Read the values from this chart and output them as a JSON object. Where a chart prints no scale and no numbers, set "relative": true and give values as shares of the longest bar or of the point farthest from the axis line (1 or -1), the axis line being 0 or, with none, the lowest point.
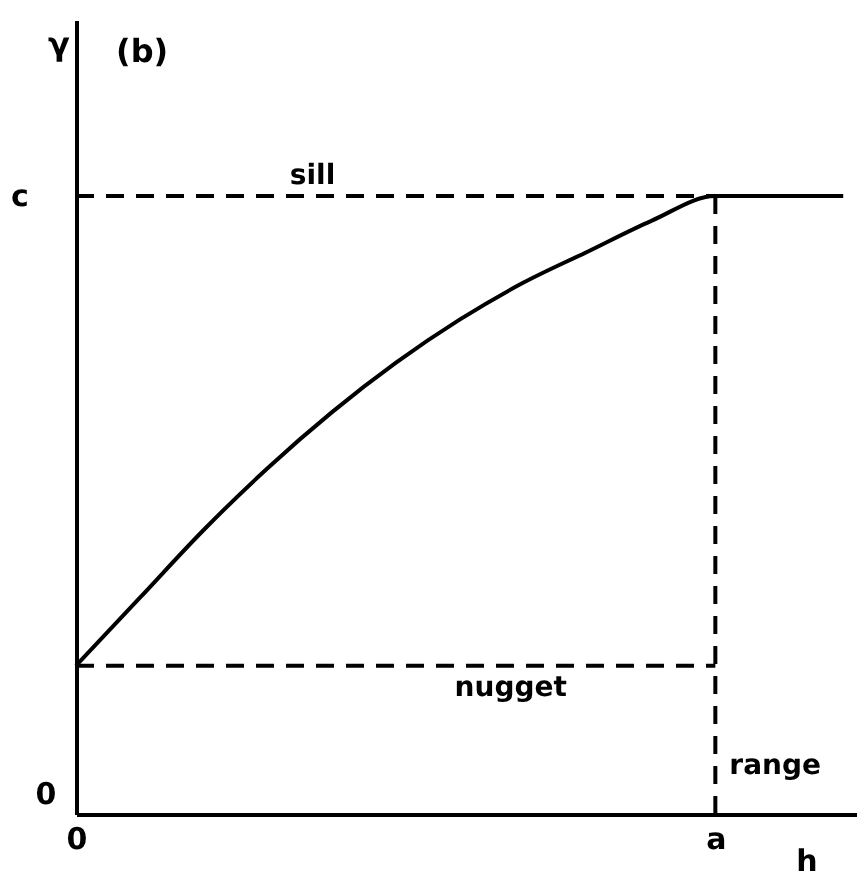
{
  "chart_data": {
    "type": "line",
    "title": "(b)",
    "xlabel": "h",
    "ylabel": "γ",
    "relative": true,
    "categories": [
      "0",
      null,
      null,
      null,
      null,
      null,
      null,
      null,
      null,
      null,
      "a",
      null,
      null
    ],
    "series": [
      {
        "color": "#000000",
        "line_style": "solid",
        "values": [
          0.24,
          0.35,
          0.46,
          0.56,
          0.65,
          0.73,
          0.8,
          0.86,
          0.91,
          0.96,
          1.0,
          1.0,
          1.0
        ]
      },
      {
        "name": "sill",
        "type": "line",
        "color": "#000000",
        "line_style": "dashed",
        "values": [
          1,
          1,
          1,
          1,
          1,
          1,
          1,
          1,
          1,
          1,
          1,
          null,
          null
        ]
      },
      {
        "name": "nugget",
        "type": "line",
        "color": "#000000",
        "line_style": "dashed",
        "values": [
          0.24,
          0.24,
          0.24,
          0.24,
          0.24,
          0.24,
          0.24,
          0.24,
          0.24,
          0.24,
          0.24,
          null,
          null
        ]
      }
    ],
    "ref_lines": [
      {
        "axis": "x",
        "value": "a",
        "label": "range",
        "line_style": "dashed",
        "color": "#000000"
      }
    ],
    "annotations": [
      "c",
      "0"
    ]
  }
}
